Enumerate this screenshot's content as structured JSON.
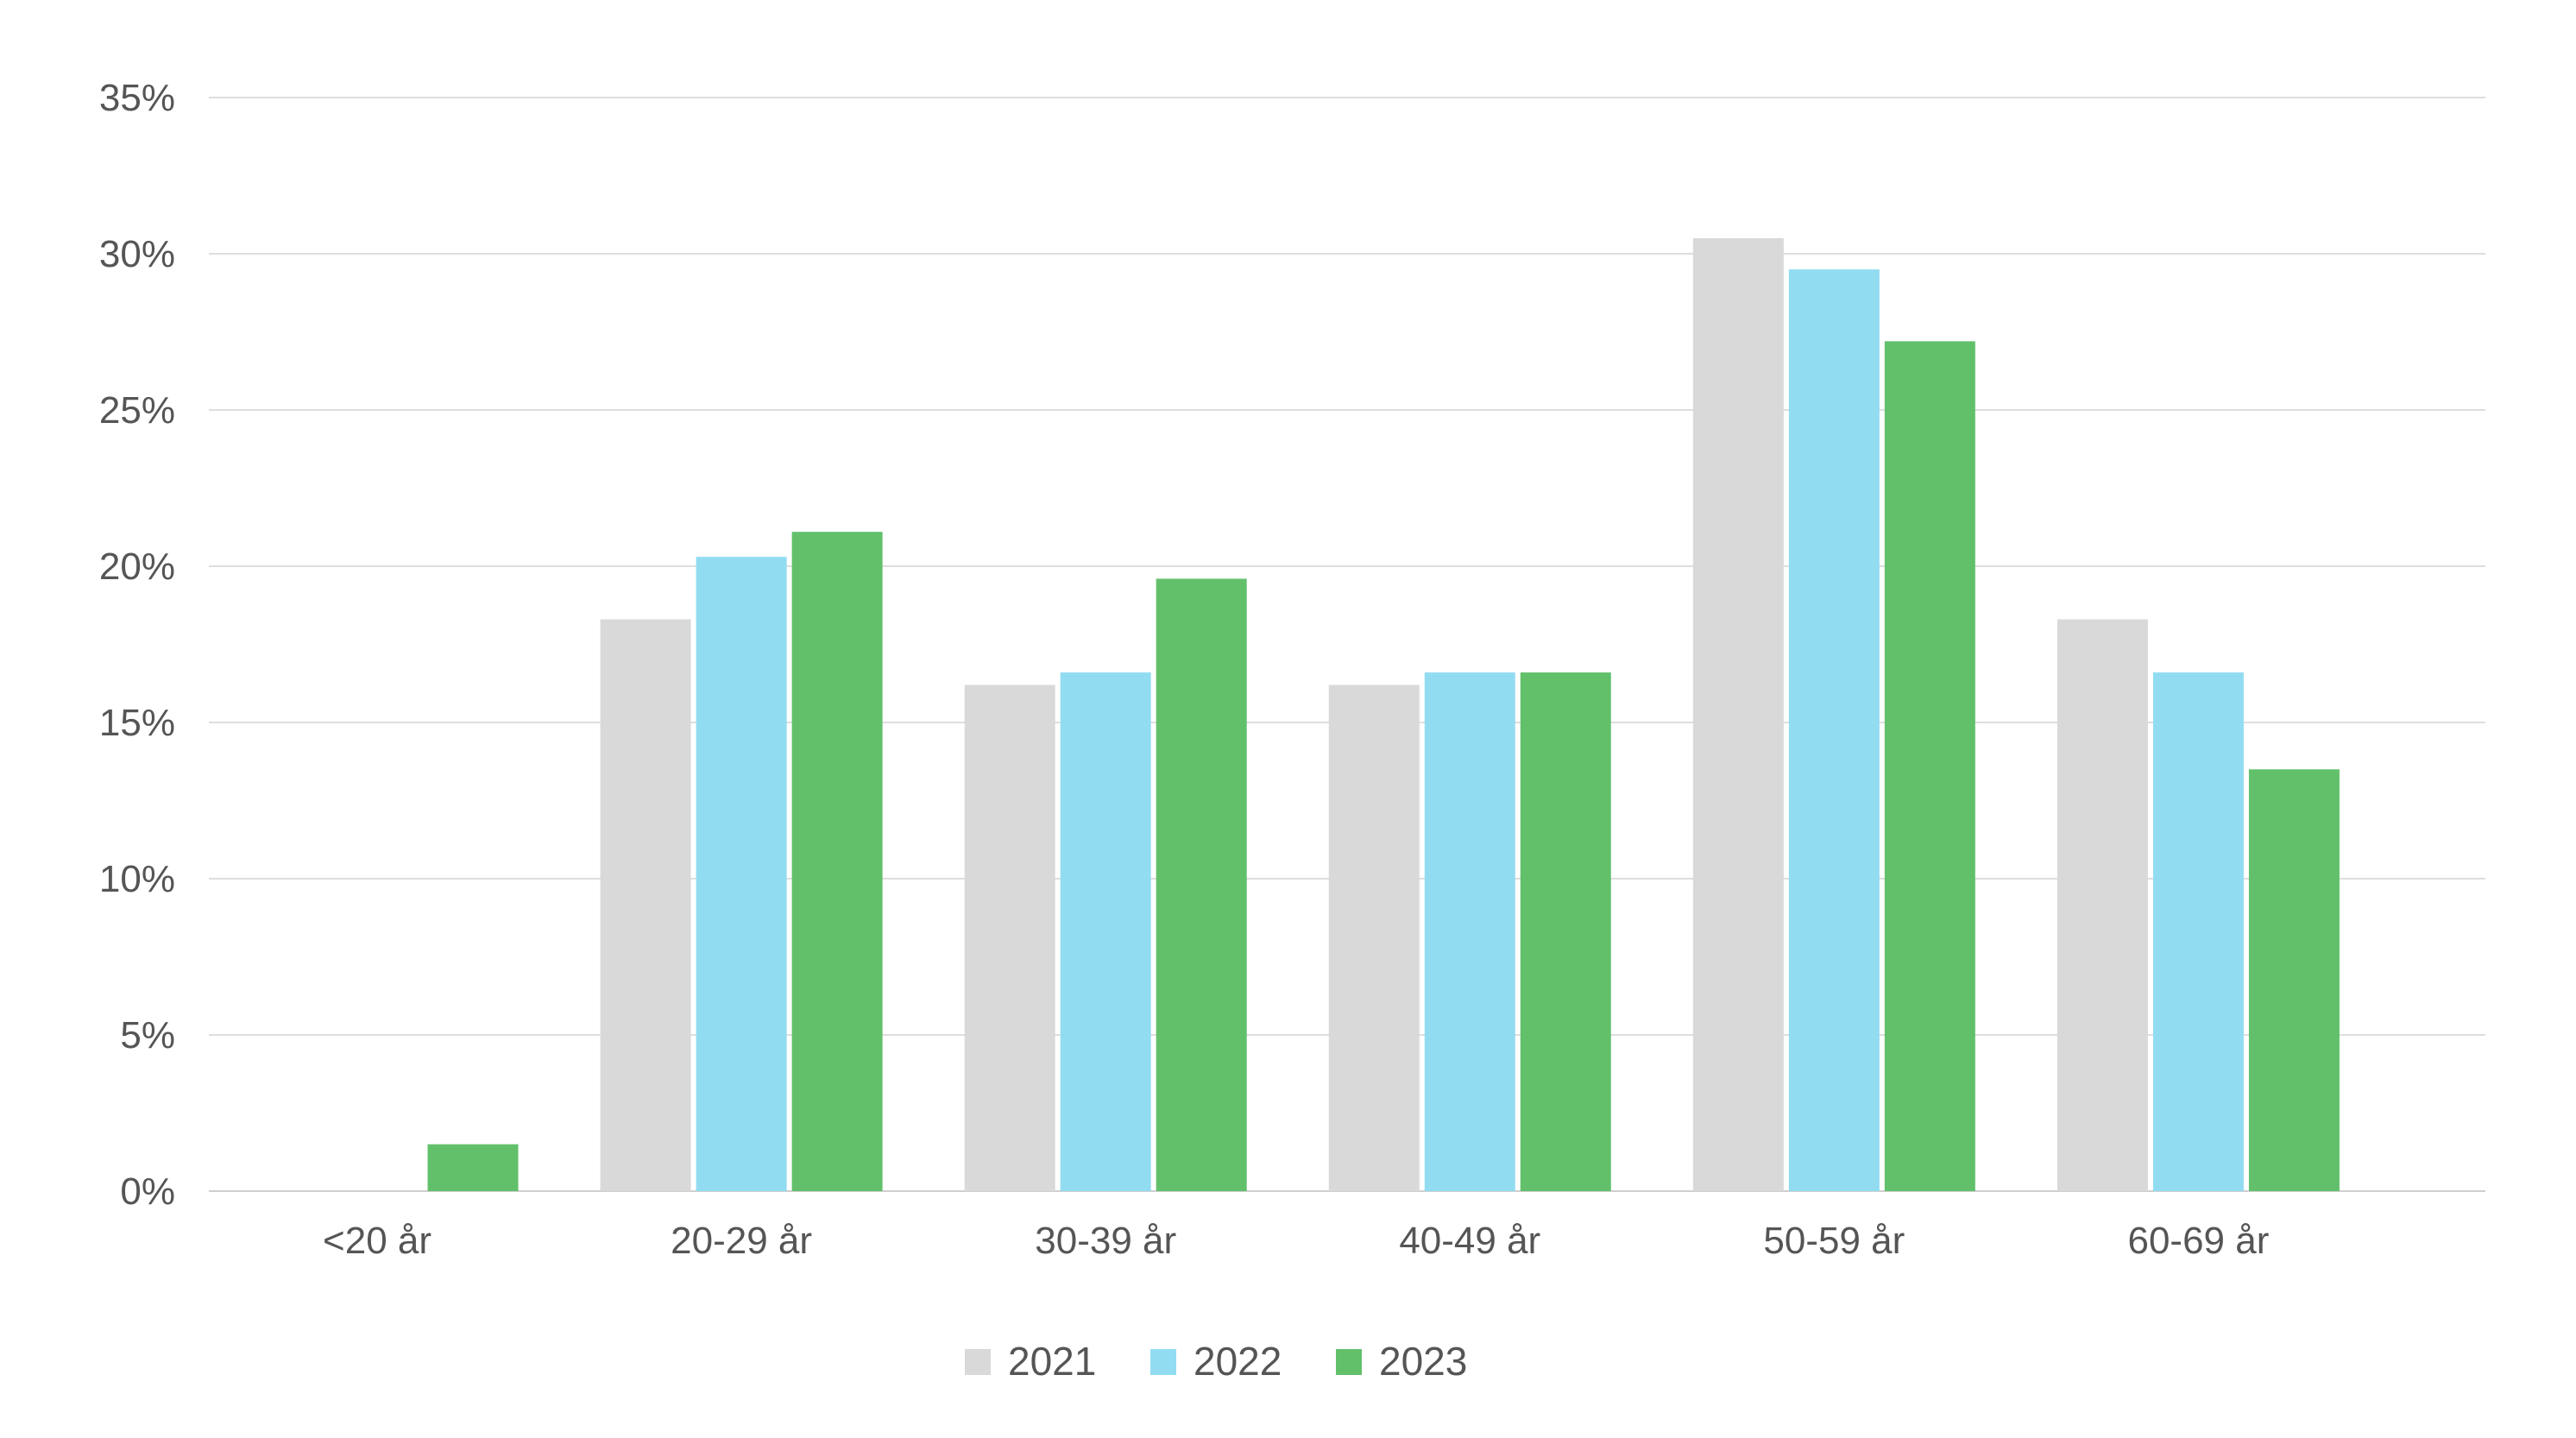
{
  "chart_data": {
    "type": "bar",
    "title": "",
    "xlabel": "",
    "ylabel": "",
    "ylim": [
      0,
      35
    ],
    "yticks": [
      "0%",
      "5%",
      "10%",
      "15%",
      "20%",
      "25%",
      "30%",
      "35%"
    ],
    "ytick_values": [
      0,
      5,
      10,
      15,
      20,
      25,
      30,
      35
    ],
    "grid": true,
    "legend_position": "bottom-center",
    "categories": [
      "<20 år",
      "20-29 år",
      "30-39 år",
      "40-49 år",
      "50-59 år",
      "60-69 år"
    ],
    "series": [
      {
        "name": "2021",
        "color": "#d9d9d9",
        "values": [
          0,
          18.3,
          16.2,
          16.2,
          30.5,
          18.3
        ]
      },
      {
        "name": "2022",
        "color": "#92dcf2",
        "values": [
          0,
          20.3,
          16.6,
          16.6,
          29.5,
          16.6
        ]
      },
      {
        "name": "2023",
        "color": "#62c06b",
        "values": [
          1.5,
          21.1,
          19.6,
          16.6,
          27.2,
          13.5
        ]
      }
    ]
  }
}
